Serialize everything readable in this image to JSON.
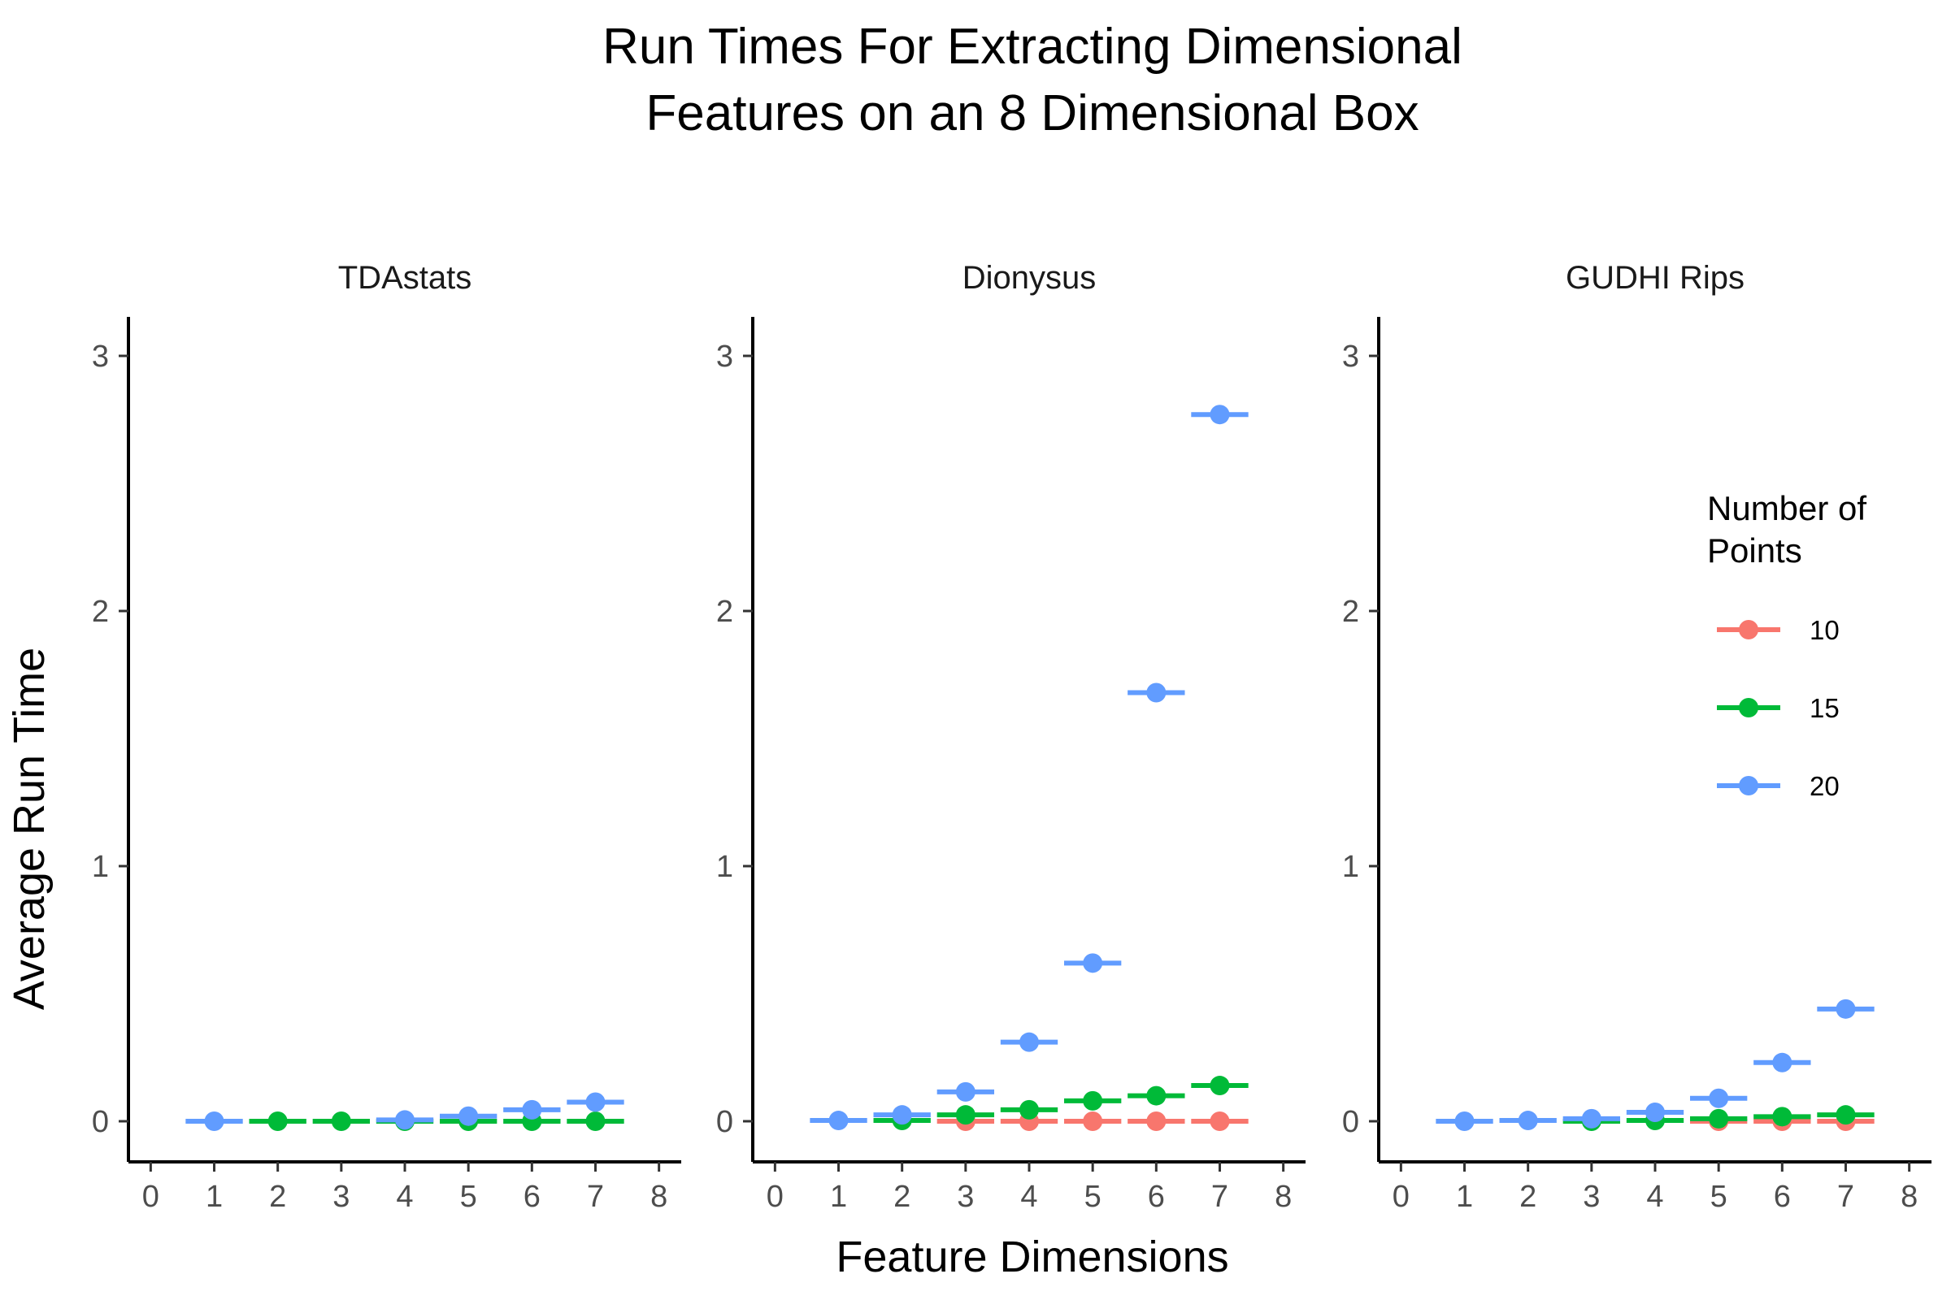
{
  "chart_data": {
    "type": "scatter",
    "title_lines": [
      "Run Times For Extracting Dimensional",
      "Features on an 8 Dimensional Box"
    ],
    "xlabel": "Feature Dimensions",
    "ylabel": "Average Run Time",
    "xlim": [
      0,
      8
    ],
    "ylim": [
      0,
      3
    ],
    "x_ticks": [
      "0",
      "1",
      "2",
      "3",
      "4",
      "5",
      "6",
      "7",
      "8"
    ],
    "y_ticks": [
      "0",
      "1",
      "2",
      "3"
    ],
    "grid": false,
    "legend": {
      "title_lines": [
        "Number of",
        "Points"
      ],
      "placement": "right",
      "entries": [
        {
          "label": "10",
          "color": "#F8766D"
        },
        {
          "label": "15",
          "color": "#00BA38"
        },
        {
          "label": "20",
          "color": "#619CFF"
        }
      ]
    },
    "panels": [
      {
        "title": "TDAstats",
        "series": [
          {
            "name": "10",
            "color": "#F8766D",
            "x": [],
            "y": []
          },
          {
            "name": "15",
            "color": "#00BA38",
            "x": [
              2,
              3,
              4,
              5,
              6,
              7
            ],
            "y": [
              0,
              0,
              0,
              0,
              0,
              0
            ]
          },
          {
            "name": "20",
            "color": "#619CFF",
            "x": [
              1,
              4,
              5,
              6,
              7
            ],
            "y": [
              0,
              0.005,
              0.02,
              0.045,
              0.075
            ]
          }
        ]
      },
      {
        "title": "Dionysus",
        "series": [
          {
            "name": "10",
            "color": "#F8766D",
            "x": [
              3,
              4,
              5,
              6,
              7
            ],
            "y": [
              0,
              0,
              0,
              0,
              0
            ]
          },
          {
            "name": "15",
            "color": "#00BA38",
            "x": [
              2,
              3,
              4,
              5,
              6,
              7
            ],
            "y": [
              0.003,
              0.025,
              0.045,
              0.08,
              0.1,
              0.14
            ]
          },
          {
            "name": "20",
            "color": "#619CFF",
            "x": [
              1,
              2,
              3,
              4,
              5,
              6,
              7
            ],
            "y": [
              0.003,
              0.025,
              0.115,
              0.31,
              0.62,
              1.68,
              2.77
            ]
          }
        ]
      },
      {
        "title": "GUDHI Rips",
        "series": [
          {
            "name": "10",
            "color": "#F8766D",
            "x": [
              5,
              6,
              7
            ],
            "y": [
              0,
              0,
              0
            ]
          },
          {
            "name": "15",
            "color": "#00BA38",
            "x": [
              3,
              4,
              5,
              6,
              7
            ],
            "y": [
              0,
              0.003,
              0.01,
              0.018,
              0.025
            ]
          },
          {
            "name": "20",
            "color": "#619CFF",
            "x": [
              1,
              2,
              3,
              4,
              5,
              6,
              7
            ],
            "y": [
              0,
              0.003,
              0.01,
              0.035,
              0.09,
              0.23,
              0.44
            ]
          }
        ]
      }
    ]
  }
}
